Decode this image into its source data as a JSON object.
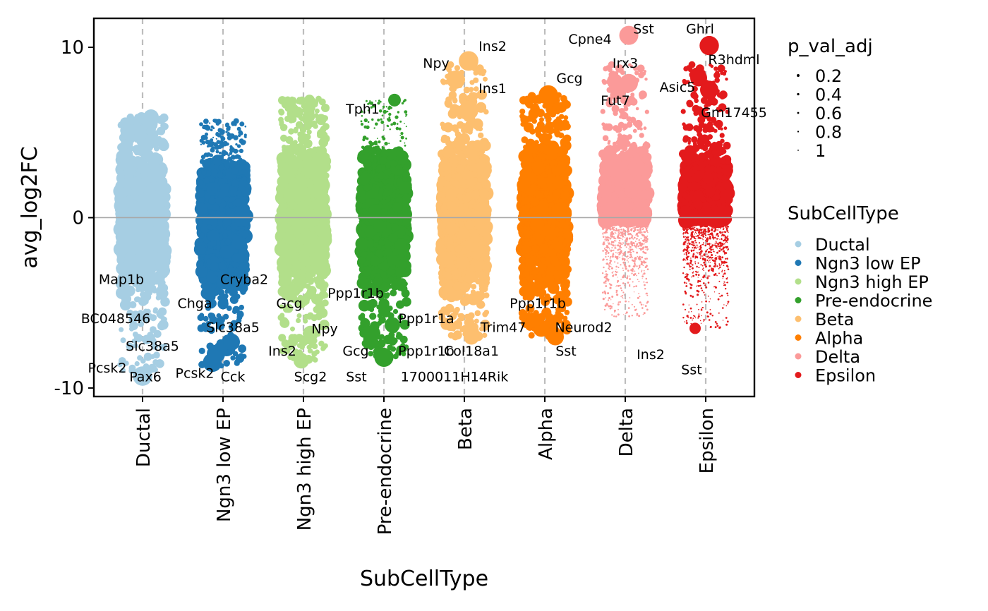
{
  "chart_data": {
    "type": "scatter",
    "subtype": "jittered volcano strip plot",
    "xlabel": "SubCellType",
    "ylabel": "avg_log2FC",
    "ylim": [
      -10.5,
      11.7
    ],
    "yticks": [
      10,
      0,
      -10
    ],
    "ytick_labels": [
      "10",
      "0",
      "-10"
    ],
    "zero_line": true,
    "grid": "dashed vertical lines at each category",
    "categories": [
      "Ductal",
      "Ngn3 low EP",
      "Ngn3 high EP",
      "Pre-endocrine",
      "Beta",
      "Alpha",
      "Delta",
      "Epsilon"
    ],
    "colors": [
      "#a6cee3",
      "#1f78b4",
      "#b2df8a",
      "#33a02c",
      "#fdbf6f",
      "#ff7f00",
      "#fb9a99",
      "#e31a1c"
    ],
    "series": [
      {
        "name": "Ductal",
        "y_max": 5.9,
        "y_min": -9.6,
        "highlighted": [
          {
            "x": 0.0,
            "y": -9.3,
            "p": 0.02
          },
          {
            "x": 0.12,
            "y": 5.9,
            "p": 0.3
          }
        ]
      },
      {
        "name": "Ngn3 low EP",
        "y_max": 5.7,
        "y_min": -8.7,
        "highlighted": [
          {
            "x": -0.15,
            "y": -8.5,
            "p": 0.05
          },
          {
            "x": -0.1,
            "y": -8.0,
            "p": 0.1
          },
          {
            "x": 0.05,
            "y": -7.6,
            "p": 0.1
          },
          {
            "x": 0.12,
            "y": -7.3,
            "p": 0.2
          }
        ]
      },
      {
        "name": "Ngn3 high EP",
        "y_max": 7.0,
        "y_min": -8.4,
        "highlighted": [
          {
            "x": -0.03,
            "y": -8.4,
            "p": 0.3
          },
          {
            "x": 0.1,
            "y": -6.8,
            "p": 0.3
          }
        ]
      },
      {
        "name": "Pre-endocrine",
        "y_max": 6.9,
        "y_min": -8.2,
        "highlighted": [
          {
            "x": 0.15,
            "y": 6.9,
            "p": 0.5
          },
          {
            "x": 0.0,
            "y": -8.2,
            "p": 0.05
          },
          {
            "x": -0.17,
            "y": -6.8,
            "p": 0.2
          },
          {
            "x": 0.12,
            "y": -6.3,
            "p": 0.3
          }
        ]
      },
      {
        "name": "Beta",
        "y_max": 9.2,
        "y_min": -7.0,
        "highlighted": [
          {
            "x": 0.06,
            "y": 9.2,
            "p": 0.01
          },
          {
            "x": -0.12,
            "y": 8.1,
            "p": 0.1
          },
          {
            "x": 0.06,
            "y": 6.3,
            "p": 0.02
          },
          {
            "x": 0.1,
            "y": -7.0,
            "p": 0.3
          }
        ]
      },
      {
        "name": "Alpha",
        "y_max": 7.2,
        "y_min": -7.0,
        "highlighted": [
          {
            "x": 0.05,
            "y": 7.2,
            "p": 0.02
          },
          {
            "x": 0.15,
            "y": -7.0,
            "p": 0.2
          },
          {
            "x": -0.05,
            "y": -6.5,
            "p": 0.2
          },
          {
            "x": -0.15,
            "y": -6.0,
            "p": 0.3
          }
        ]
      },
      {
        "name": "Delta",
        "y_max": 10.7,
        "y_min": -5.8,
        "highlighted": [
          {
            "x": 0.05,
            "y": 10.7,
            "p": 0.05
          },
          {
            "x": 0.05,
            "y": 7.9,
            "p": 0.1
          },
          {
            "x": -0.15,
            "y": 8.0,
            "p": 0.3
          },
          {
            "x": -0.1,
            "y": 7.4,
            "p": 0.3
          }
        ]
      },
      {
        "name": "Epsilon",
        "y_max": 10.1,
        "y_min": -6.5,
        "highlighted": [
          {
            "x": 0.05,
            "y": 10.1,
            "p": 0.03
          },
          {
            "x": -0.1,
            "y": 8.2,
            "p": 0.2
          },
          {
            "x": 0.05,
            "y": 7.5,
            "p": 0.1
          },
          {
            "x": -0.15,
            "y": -6.5,
            "p": 0.6
          }
        ]
      }
    ],
    "gene_labels": [
      {
        "text": "Map1b",
        "cat": 0,
        "y": -3.9
      },
      {
        "text": "BC048546",
        "cat": 0,
        "y": -6.2
      },
      {
        "text": "Slc38a5",
        "cat": 0,
        "y": -7.8
      },
      {
        "text": "Pcsk2",
        "cat": 0,
        "y": -9.1
      },
      {
        "text": "Pax6",
        "cat": 0,
        "y": -9.6
      },
      {
        "text": "Cryba2",
        "cat": 1,
        "y": -3.9
      },
      {
        "text": "Chga",
        "cat": 1,
        "y": -5.3
      },
      {
        "text": "Slc38a5",
        "cat": 1,
        "y": -6.7
      },
      {
        "text": "Pcsk2",
        "cat": 1,
        "y": -9.4
      },
      {
        "text": "Cck",
        "cat": 1,
        "y": -9.6
      },
      {
        "text": "Gcg",
        "cat": 2,
        "y": -5.3
      },
      {
        "text": "Npy",
        "cat": 2,
        "y": -6.8
      },
      {
        "text": "Ins2",
        "cat": 2,
        "y": -8.1
      },
      {
        "text": "Scg2",
        "cat": 2,
        "y": -9.6
      },
      {
        "text": "Sst",
        "cat": 2,
        "y": -9.6
      },
      {
        "text": "Tph1",
        "cat": 3,
        "y": 6.1
      },
      {
        "text": "Ppp1r1b",
        "cat": 3,
        "y": -4.7
      },
      {
        "text": "Ppp1r1a",
        "cat": 3,
        "y": -6.2
      },
      {
        "text": "Gcg",
        "cat": 3,
        "y": -8.1
      },
      {
        "text": "Ppp1r1b",
        "cat": 3,
        "y": -8.1
      },
      {
        "text": "1700011H14Rik",
        "cat": 3,
        "y": -9.6
      },
      {
        "text": "Ins2",
        "cat": 4,
        "y": 9.8
      },
      {
        "text": "Npy",
        "cat": 4,
        "y": 8.8
      },
      {
        "text": "Ins1",
        "cat": 4,
        "y": 7.3
      },
      {
        "text": "Trim47",
        "cat": 4,
        "y": -6.7
      },
      {
        "text": "Col18a1",
        "cat": 4,
        "y": -8.1
      },
      {
        "text": "Gcg",
        "cat": 5,
        "y": 7.9
      },
      {
        "text": "Ppp1r1b",
        "cat": 5,
        "y": -5.3
      },
      {
        "text": "Neurod2",
        "cat": 5,
        "y": -6.7
      },
      {
        "text": "Sst",
        "cat": 5,
        "y": -8.1
      },
      {
        "text": "Sst",
        "cat": 6,
        "y": 10.8
      },
      {
        "text": "Cpne4",
        "cat": 6,
        "y": 10.2
      },
      {
        "text": "Irx3",
        "cat": 6,
        "y": 8.8
      },
      {
        "text": "Fut7",
        "cat": 6,
        "y": 6.6
      },
      {
        "text": "Ins2",
        "cat": 6,
        "y": -8.3
      },
      {
        "text": "Ghrl",
        "cat": 7,
        "y": 10.8
      },
      {
        "text": "R3hdml",
        "cat": 7,
        "y": 9.0
      },
      {
        "text": "Asic5",
        "cat": 7,
        "y": 7.4
      },
      {
        "text": "Gm17455",
        "cat": 7,
        "y": 5.9
      },
      {
        "text": "Sst",
        "cat": 7,
        "y": -9.2
      }
    ],
    "legend_size": {
      "title": "p_val_adj",
      "entries": [
        "0.2",
        "0.4",
        "0.6",
        "0.8",
        "1"
      ],
      "values": [
        0.2,
        0.4,
        0.6,
        0.8,
        1.0
      ]
    },
    "legend_color": {
      "title": "SubCellType",
      "entries": [
        "Ductal",
        "Ngn3 low EP",
        "Ngn3 high EP",
        "Pre-endocrine",
        "Beta",
        "Alpha",
        "Delta",
        "Epsilon"
      ]
    },
    "legend_position": "right"
  }
}
